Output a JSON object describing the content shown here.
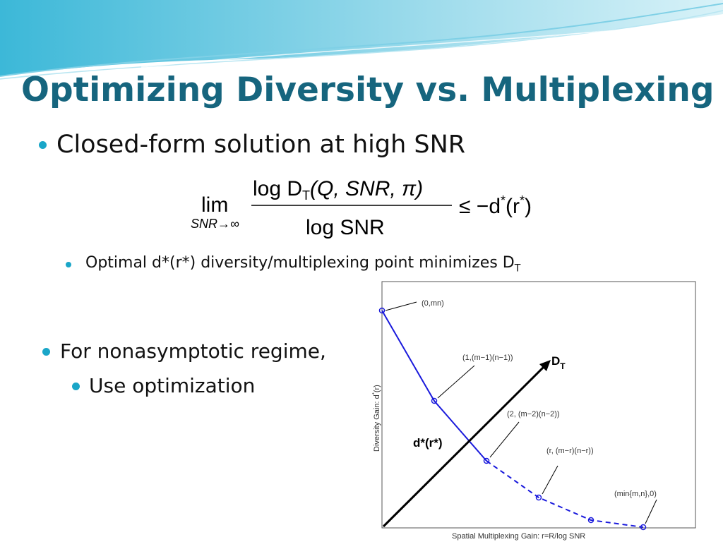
{
  "title": "Optimizing Diversity vs. Multiplexing",
  "bullet_1": {
    "text": "Closed-form solution at high SNR"
  },
  "formula": {
    "lim": "lim",
    "lim_sub": "SNR→∞",
    "num_log": "log D",
    "num_sub": "T",
    "num_args": "(Q, SNR, π)",
    "den": "log SNR",
    "rhs": "≤ −d",
    "rhs_sup_1": "*",
    "rhs_mid": "(r",
    "rhs_sup_2": "*",
    "rhs_end": ")"
  },
  "sub_bullet_1": {
    "text": "Optimal d*(r*) diversity/multiplexing point minimizes D",
    "sub": "T"
  },
  "bullet_2": {
    "text": "For nonasymptotic regime,"
  },
  "sub_bullet_2": {
    "text": "Use optimization"
  },
  "plot": {
    "y_label": "Diversity Gain:  d",
    "y_label_sup": "*",
    "y_label_end": "(r)",
    "x_label": "Spatial Multiplexing Gain:   r=R/log SNR",
    "point_labels": [
      "(0,mn)",
      "(1,(m−1)(n−1))",
      "(2, (m−2)(n−2))",
      "(r, (m−r)(n−r))",
      "(min{m,n},0)"
    ],
    "dt_label": "D",
    "dt_sub": "T",
    "opt_label": "d*(r*)"
  }
}
